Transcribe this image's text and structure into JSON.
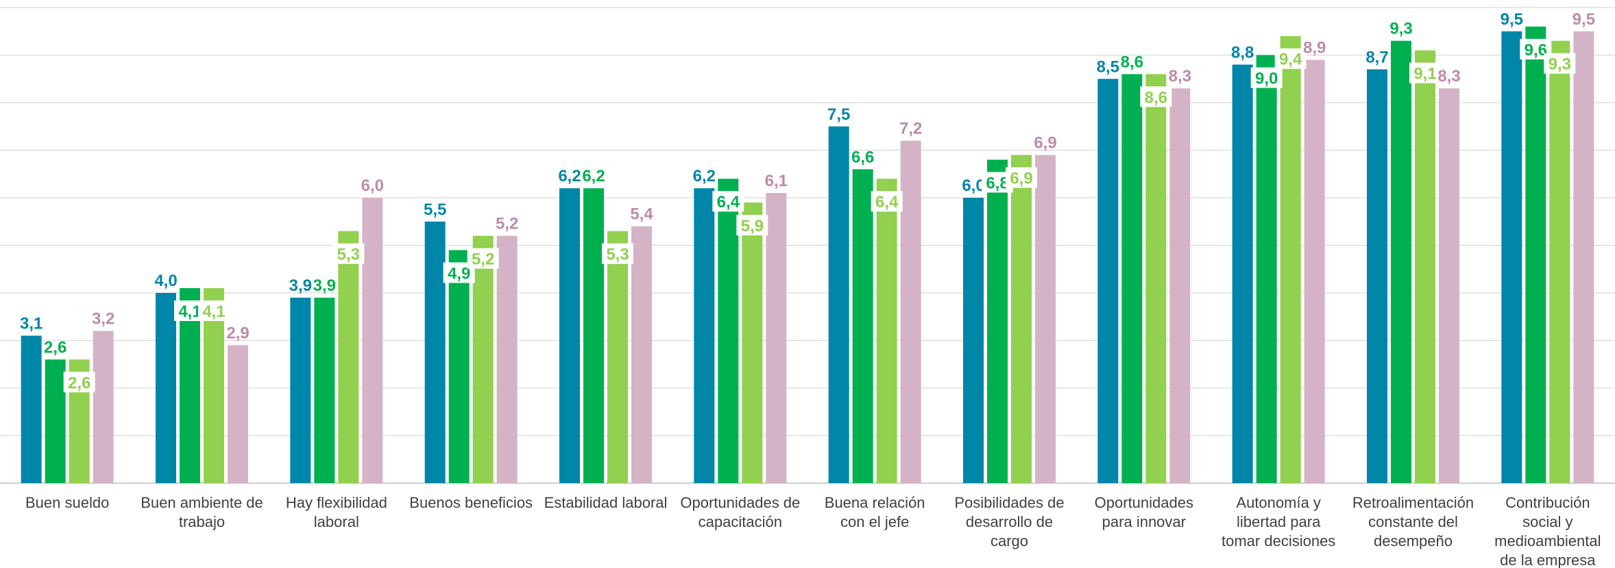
{
  "chart_data": {
    "type": "bar",
    "title": "",
    "xlabel": "",
    "ylabel": "",
    "ylim": [
      0,
      10
    ],
    "grid": true,
    "legend": "none",
    "categories": [
      [
        "Buen sueldo"
      ],
      [
        "Buen ambiente de",
        "trabajo"
      ],
      [
        "Hay flexibilidad",
        "laboral"
      ],
      [
        "Buenos beneficios"
      ],
      [
        "Estabilidad laboral"
      ],
      [
        "Oportunidades de",
        "capacitación"
      ],
      [
        "Buena relación",
        "con el jefe"
      ],
      [
        "Posibilidades de",
        "desarrollo de",
        "cargo"
      ],
      [
        "Oportunidades",
        "para innovar"
      ],
      [
        "Autonomía y",
        "libertad para",
        "tomar decisiones"
      ],
      [
        "Retroalimentación",
        "constante del",
        "desempeño"
      ],
      [
        "Contribución",
        "social y",
        "medioambiental",
        "de la empresa"
      ]
    ],
    "series": [
      {
        "color": "#0086a8",
        "values": [
          3.1,
          4.0,
          3.9,
          5.5,
          6.2,
          6.2,
          7.5,
          6.0,
          8.5,
          8.8,
          8.7,
          9.5
        ],
        "labels": [
          "3,1",
          "4,0",
          "3,9",
          "5,5",
          "6,2",
          "6,2",
          "7,5",
          "6,0",
          "8,5",
          "8,8",
          "8,7",
          "9,5"
        ]
      },
      {
        "color": "#00b050",
        "values": [
          2.6,
          4.1,
          3.9,
          4.9,
          6.2,
          6.4,
          6.6,
          6.8,
          8.6,
          9.0,
          9.3,
          9.6
        ],
        "labels": [
          "2,6",
          "4,1",
          "3,9",
          "4,9",
          "6,2",
          "6,4",
          "6,6",
          "6,8",
          "8,6",
          "9,0",
          "9,3",
          "9,6"
        ]
      },
      {
        "color": "#92d050",
        "values": [
          2.6,
          4.1,
          5.3,
          5.2,
          5.3,
          5.9,
          6.4,
          6.9,
          8.6,
          9.4,
          9.1,
          9.3
        ],
        "labels": [
          "2,6",
          "4,1",
          "5,3",
          "5,2",
          "5,3",
          "5,9",
          "6,4",
          "6,9",
          "8,6",
          "9,4",
          "9,1",
          "9,3"
        ]
      },
      {
        "color": "#d5b3c6",
        "labelColor": "#c08aa8",
        "values": [
          3.2,
          2.9,
          6.0,
          5.2,
          5.4,
          6.1,
          7.2,
          6.9,
          8.3,
          8.9,
          8.3,
          9.5
        ],
        "labels": [
          "3,2",
          "2,9",
          "6,0",
          "5,2",
          "5,4",
          "6,1",
          "7,2",
          "6,9",
          "8,3",
          "8,9",
          "8,3",
          "9,5"
        ]
      }
    ]
  }
}
